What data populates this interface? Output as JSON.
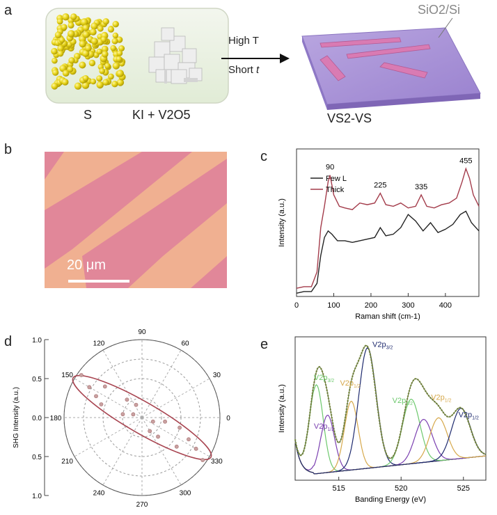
{
  "panel_a": {
    "label": "a",
    "precursor_s": "S",
    "precursor_ki": "KI + V2O5",
    "condition_temp": "High T",
    "condition_time_prefix": "Short",
    "condition_time_var": "t",
    "substrate": "SiO2/Si",
    "product": "VS2-VS"
  },
  "panel_b": {
    "label": "b",
    "scale_bar": "20 μm",
    "colors": {
      "bg": "#f0b091",
      "stripe": "#e1859a"
    }
  },
  "chart_data": [
    {
      "panel": "c",
      "type": "line",
      "title": "",
      "xlabel": "Raman shift (cm-1)",
      "ylabel": "Intensity (a.u.)",
      "xlim": [
        0,
        490
      ],
      "xticks": [
        0,
        100,
        200,
        300,
        400
      ],
      "legend": [
        "Few L",
        "Thick"
      ],
      "peak_labels": [
        {
          "x": 90,
          "text": "90"
        },
        {
          "x": 225,
          "text": "225"
        },
        {
          "x": 335,
          "text": "335"
        },
        {
          "x": 455,
          "text": "455"
        }
      ],
      "series": [
        {
          "name": "Few L",
          "color": "#222222",
          "x": [
            0,
            20,
            40,
            55,
            65,
            75,
            85,
            95,
            110,
            130,
            150,
            170,
            190,
            210,
            225,
            240,
            260,
            280,
            300,
            320,
            340,
            360,
            380,
            400,
            420,
            440,
            455,
            470,
            490
          ],
          "y": [
            0.02,
            0.03,
            0.03,
            0.08,
            0.25,
            0.36,
            0.4,
            0.38,
            0.34,
            0.34,
            0.33,
            0.34,
            0.35,
            0.36,
            0.42,
            0.37,
            0.38,
            0.42,
            0.5,
            0.46,
            0.4,
            0.45,
            0.39,
            0.41,
            0.44,
            0.5,
            0.52,
            0.45,
            0.4
          ]
        },
        {
          "name": "Thick",
          "color": "#a33b4a",
          "x": [
            0,
            20,
            40,
            55,
            65,
            75,
            85,
            90,
            100,
            115,
            130,
            150,
            170,
            190,
            210,
            225,
            240,
            260,
            280,
            300,
            320,
            335,
            350,
            370,
            390,
            410,
            430,
            445,
            455,
            465,
            475,
            490
          ],
          "y": [
            0.05,
            0.06,
            0.06,
            0.15,
            0.42,
            0.55,
            0.7,
            0.74,
            0.62,
            0.55,
            0.54,
            0.53,
            0.57,
            0.56,
            0.57,
            0.63,
            0.56,
            0.55,
            0.57,
            0.54,
            0.55,
            0.62,
            0.55,
            0.54,
            0.56,
            0.57,
            0.6,
            0.7,
            0.78,
            0.72,
            0.62,
            0.55
          ]
        }
      ]
    },
    {
      "panel": "d",
      "type": "scatter",
      "subtype": "polar",
      "title": "",
      "ylabel": "SHG Intensity (a.u.)",
      "angle_ticks": [
        0,
        30,
        60,
        90,
        120,
        150,
        180,
        210,
        240,
        270,
        300,
        330
      ],
      "radial_ticks": [
        "1.0",
        "0.5",
        "0.0",
        "0.5",
        "1.0"
      ],
      "points": [
        {
          "angle": 145,
          "r": 0.95
        },
        {
          "angle": 150,
          "r": 0.78
        },
        {
          "angle": 155,
          "r": 0.65
        },
        {
          "angle": 162,
          "r": 0.55
        },
        {
          "angle": 140,
          "r": 0.62
        },
        {
          "angle": 170,
          "r": 0.25
        },
        {
          "angle": 130,
          "r": 0.3
        },
        {
          "angle": 115,
          "r": 0.18
        },
        {
          "angle": 160,
          "r": 0.12
        },
        {
          "angle": 325,
          "r": 0.95
        },
        {
          "angle": 330,
          "r": 0.8
        },
        {
          "angle": 335,
          "r": 0.66
        },
        {
          "angle": 320,
          "r": 0.58
        },
        {
          "angle": 345,
          "r": 0.5
        },
        {
          "angle": 310,
          "r": 0.32
        },
        {
          "angle": 350,
          "r": 0.3
        },
        {
          "angle": 300,
          "r": 0.2
        },
        {
          "angle": 340,
          "r": 0.15
        }
      ],
      "fit_axis_angle": 150,
      "fit_color": "#a84450"
    },
    {
      "panel": "e",
      "type": "line",
      "title": "",
      "xlabel": "Banding Energy (eV)",
      "ylabel": "Intensity (a.u.)",
      "xlim": [
        511.5,
        526.8
      ],
      "xticks": [
        515,
        520,
        525
      ],
      "peaks": [
        {
          "name": "V2p3/2 green",
          "center": 513.2,
          "height": 0.62,
          "sigma": 0.55,
          "color": "#6cc86c"
        },
        {
          "name": "V2p1/2 purple",
          "center": 514.1,
          "height": 0.4,
          "sigma": 0.55,
          "color": "#7a3fb0"
        },
        {
          "name": "V2p1/2 orange",
          "center": 516.0,
          "height": 0.48,
          "sigma": 0.55,
          "color": "#d6a84a"
        },
        {
          "name": "V2p3/2 navy",
          "center": 517.3,
          "height": 0.84,
          "sigma": 0.7,
          "color": "#1e2a6e"
        },
        {
          "name": "V2p1/2 green",
          "center": 520.8,
          "height": 0.45,
          "sigma": 0.7,
          "color": "#6cc86c"
        },
        {
          "name": "V2p3/2 purple",
          "center": 521.8,
          "height": 0.3,
          "sigma": 0.7,
          "color": "#7a3fb0"
        },
        {
          "name": "V2p3/2 orange",
          "center": 523.0,
          "height": 0.3,
          "sigma": 0.7,
          "color": "#d6a84a"
        },
        {
          "name": "V2p1/2 navy",
          "center": 524.8,
          "height": 0.35,
          "sigma": 0.75,
          "color": "#1e2a6e"
        }
      ],
      "background_color": "#e0a040",
      "fit_color": "#5a6a3a",
      "data_color": "#9aaa50",
      "annotations": [
        {
          "text": "V2p",
          "sub": "3/2",
          "color": "#6cc86c",
          "x": 513.0,
          "y": 0.7
        },
        {
          "text": "V2p",
          "sub": "1/2",
          "color": "#d6a84a",
          "x": 515.1,
          "y": 0.66
        },
        {
          "text": "V2p",
          "sub": "3/2",
          "color": "#1e2a6e",
          "x": 517.7,
          "y": 0.93
        },
        {
          "text": "V2p",
          "sub": "1/2",
          "color": "#7a3fb0",
          "x": 513.0,
          "y": 0.36
        },
        {
          "text": "V2p",
          "sub": "1/2",
          "color": "#6cc86c",
          "x": 519.3,
          "y": 0.54
        },
        {
          "text": "V2p",
          "sub": "1/2",
          "color": "#d6a84a",
          "x": 522.4,
          "y": 0.56
        },
        {
          "text": "V2p",
          "sub": "1/2",
          "color": "#1e2a6e",
          "x": 524.6,
          "y": 0.44
        }
      ]
    }
  ],
  "panel_labels": {
    "c": "c",
    "d": "d",
    "e": "e"
  }
}
